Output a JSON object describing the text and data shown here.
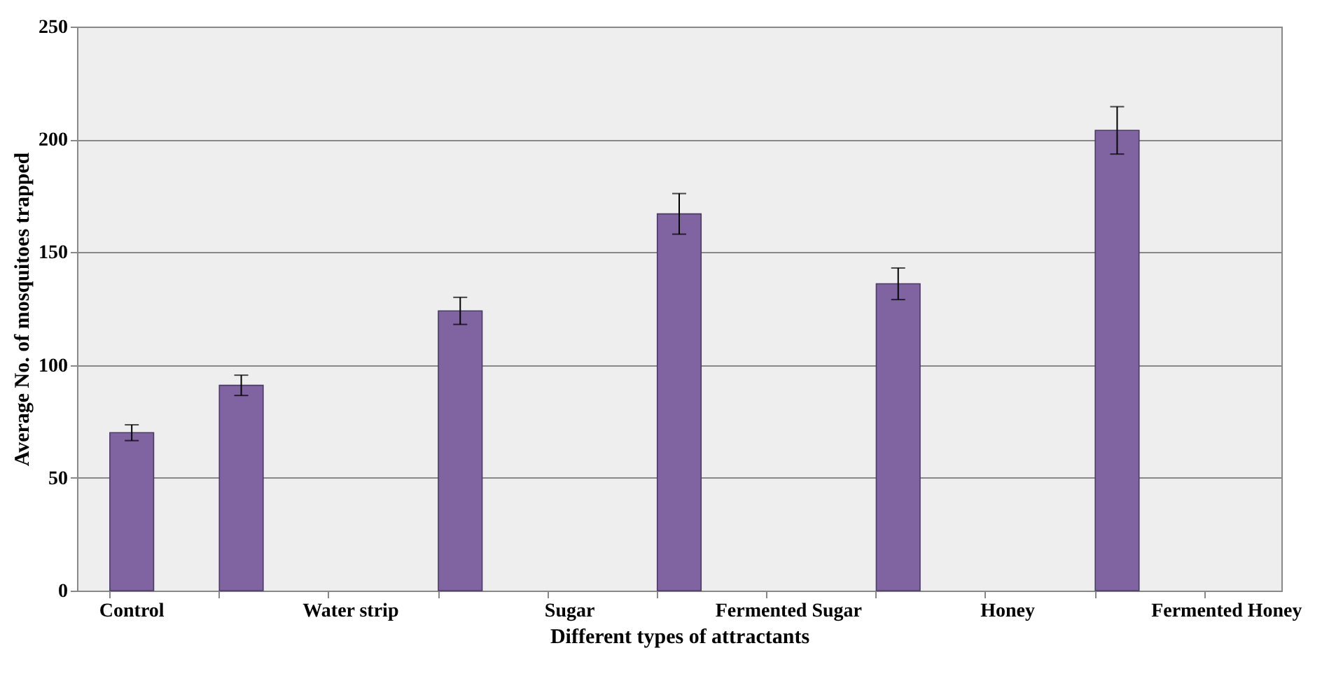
{
  "chart_data": {
    "type": "bar",
    "xlabel": "Different types of attractants",
    "ylabel": "Average No. of mosquitoes trapped",
    "categories": [
      "Control",
      null,
      "Water strip",
      null,
      "Sugar",
      null,
      "Fermented Sugar",
      null,
      "Honey",
      null,
      "Fermented Honey"
    ],
    "values": [
      70,
      91,
      null,
      124,
      null,
      167,
      null,
      136,
      null,
      204,
      null
    ],
    "errors": [
      3.5,
      4.5,
      null,
      6,
      null,
      9,
      null,
      7,
      null,
      10.5,
      null
    ],
    "color": "#8064a2",
    "ylim": [
      0,
      250
    ],
    "yticks": [
      0,
      50,
      100,
      150,
      200,
      250
    ],
    "grid": "y"
  }
}
